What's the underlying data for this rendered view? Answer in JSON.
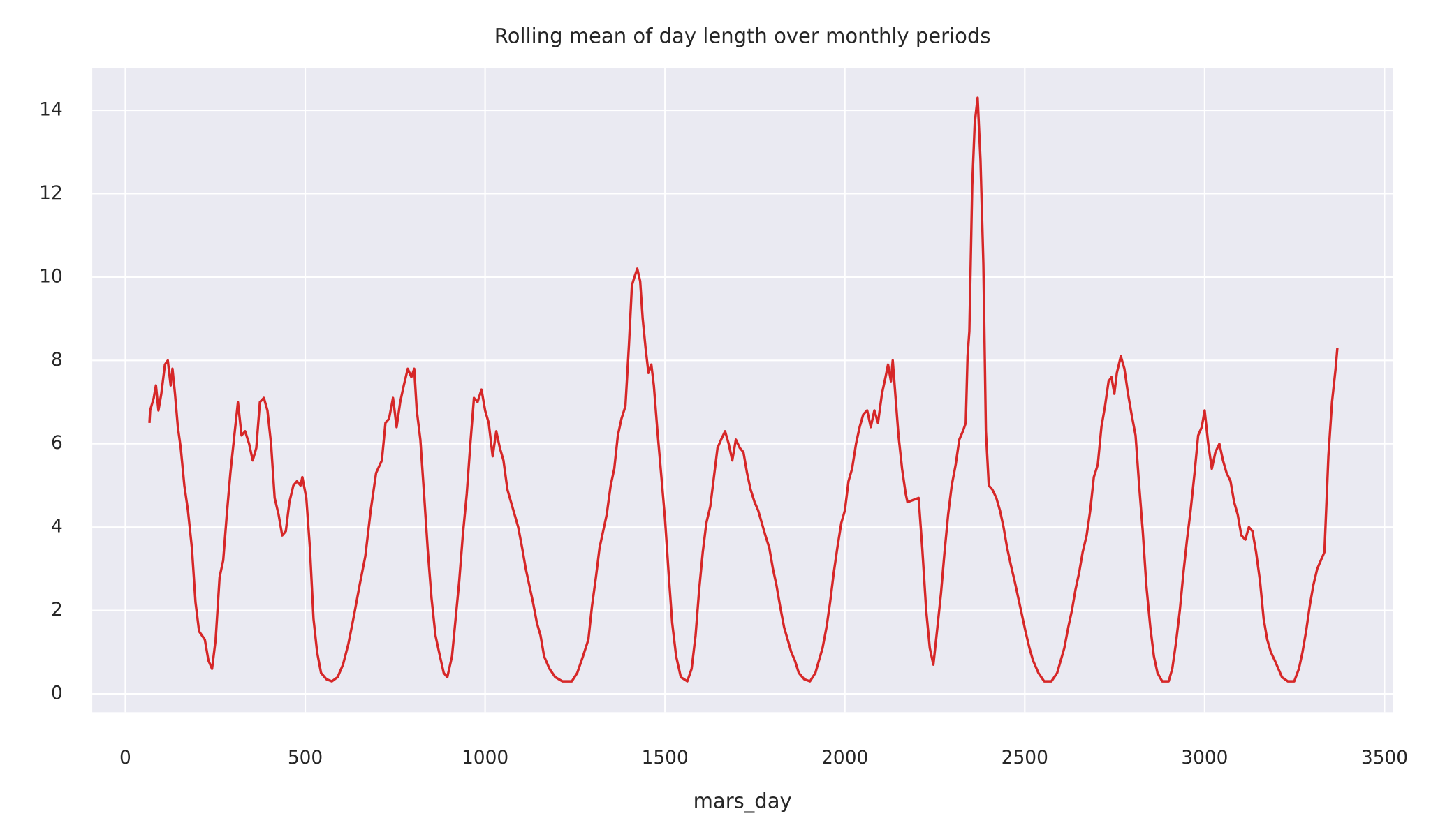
{
  "chart_data": {
    "type": "line",
    "title": "Rolling mean of day length over monthly periods",
    "x_label": "mars_day",
    "color": "#d62728",
    "grid": true,
    "xlim": [
      -92,
      3523
    ],
    "ylim": [
      -0.44,
      15.02
    ],
    "xticks": [
      0,
      500,
      1000,
      1500,
      2000,
      2500,
      3000,
      3500
    ],
    "yticks": [
      0,
      2,
      4,
      6,
      8,
      10,
      12,
      14
    ],
    "x": [
      67,
      69,
      79,
      85,
      92,
      100,
      110,
      118,
      126,
      131,
      138,
      146,
      154,
      164,
      174,
      185,
      195,
      205,
      221,
      231,
      241,
      251,
      262,
      272,
      282,
      292,
      303,
      313,
      323,
      333,
      344,
      354,
      364,
      374,
      385,
      395,
      405,
      415,
      426,
      436,
      446,
      456,
      467,
      477,
      487,
      492,
      503,
      513,
      523,
      533,
      544,
      559,
      574,
      590,
      605,
      620,
      636,
      651,
      667,
      682,
      697,
      713,
      723,
      733,
      744,
      754,
      764,
      774,
      785,
      795,
      803,
      810,
      820,
      831,
      841,
      851,
      862,
      872,
      885,
      895,
      908,
      918,
      928,
      938,
      949,
      959,
      969,
      979,
      990,
      1000,
      1010,
      1021,
      1031,
      1041,
      1051,
      1062,
      1072,
      1082,
      1092,
      1103,
      1113,
      1123,
      1133,
      1144,
      1154,
      1164,
      1179,
      1195,
      1215,
      1241,
      1256,
      1272,
      1287,
      1297,
      1308,
      1318,
      1328,
      1338,
      1349,
      1359,
      1369,
      1379,
      1390,
      1400,
      1408,
      1415,
      1423,
      1431,
      1438,
      1446,
      1454,
      1462,
      1469,
      1479,
      1490,
      1500,
      1510,
      1520,
      1531,
      1544,
      1562,
      1574,
      1585,
      1595,
      1605,
      1615,
      1626,
      1636,
      1646,
      1656,
      1667,
      1677,
      1687,
      1697,
      1708,
      1718,
      1728,
      1738,
      1749,
      1759,
      1769,
      1779,
      1790,
      1800,
      1810,
      1820,
      1831,
      1841,
      1851,
      1861,
      1872,
      1887,
      1903,
      1918,
      1928,
      1938,
      1949,
      1959,
      1969,
      1979,
      1990,
      2000,
      2010,
      2020,
      2031,
      2041,
      2051,
      2062,
      2072,
      2082,
      2092,
      2103,
      2113,
      2120,
      2128,
      2133,
      2141,
      2149,
      2159,
      2169,
      2174,
      2205,
      2215,
      2226,
      2236,
      2246,
      2256,
      2267,
      2277,
      2287,
      2297,
      2308,
      2318,
      2328,
      2336,
      2341,
      2346,
      2354,
      2361,
      2369,
      2377,
      2385,
      2392,
      2400,
      2410,
      2421,
      2431,
      2441,
      2451,
      2461,
      2472,
      2482,
      2492,
      2502,
      2513,
      2523,
      2538,
      2554,
      2574,
      2590,
      2600,
      2610,
      2621,
      2631,
      2641,
      2651,
      2661,
      2672,
      2682,
      2692,
      2703,
      2713,
      2723,
      2733,
      2741,
      2749,
      2756,
      2767,
      2777,
      2787,
      2797,
      2808,
      2818,
      2828,
      2838,
      2849,
      2859,
      2869,
      2882,
      2900,
      2910,
      2920,
      2931,
      2941,
      2951,
      2961,
      2972,
      2982,
      2992,
      3000,
      3010,
      3020,
      3030,
      3041,
      3051,
      3061,
      3072,
      3082,
      3092,
      3102,
      3113,
      3123,
      3133,
      3143,
      3154,
      3164,
      3174,
      3184,
      3195,
      3205,
      3215,
      3231,
      3249,
      3262,
      3272,
      3282,
      3292,
      3302,
      3313,
      3323,
      3333,
      3344,
      3354,
      3364,
      3369
    ],
    "values": [
      6.5,
      6.8,
      7.1,
      7.4,
      6.8,
      7.2,
      7.9,
      8.0,
      7.4,
      7.8,
      7.2,
      6.4,
      5.9,
      5.0,
      4.4,
      3.5,
      2.2,
      1.5,
      1.3,
      0.8,
      0.6,
      1.3,
      2.8,
      3.2,
      4.3,
      5.3,
      6.2,
      7.0,
      6.2,
      6.3,
      6.0,
      5.6,
      5.9,
      7.0,
      7.1,
      6.8,
      6.0,
      4.7,
      4.3,
      3.8,
      3.9,
      4.6,
      5.0,
      5.1,
      5.0,
      5.2,
      4.7,
      3.5,
      1.8,
      1.0,
      0.5,
      0.35,
      0.3,
      0.4,
      0.7,
      1.2,
      1.9,
      2.6,
      3.3,
      4.4,
      5.3,
      5.6,
      6.5,
      6.6,
      7.1,
      6.4,
      7.0,
      7.4,
      7.8,
      7.6,
      7.8,
      6.8,
      6.1,
      4.7,
      3.4,
      2.3,
      1.4,
      1.0,
      0.5,
      0.4,
      0.9,
      1.8,
      2.7,
      3.8,
      4.8,
      6.0,
      7.1,
      7.0,
      7.3,
      6.8,
      6.5,
      5.7,
      6.3,
      5.9,
      5.6,
      4.9,
      4.6,
      4.3,
      4.0,
      3.5,
      3.0,
      2.6,
      2.2,
      1.7,
      1.4,
      0.9,
      0.6,
      0.4,
      0.3,
      0.3,
      0.5,
      0.9,
      1.3,
      2.1,
      2.8,
      3.5,
      3.9,
      4.3,
      5.0,
      5.4,
      6.2,
      6.6,
      6.9,
      8.4,
      9.8,
      10.0,
      10.2,
      9.9,
      9.0,
      8.3,
      7.7,
      7.9,
      7.4,
      6.3,
      5.2,
      4.2,
      2.9,
      1.7,
      0.9,
      0.4,
      0.3,
      0.6,
      1.4,
      2.5,
      3.4,
      4.1,
      4.5,
      5.2,
      5.9,
      6.1,
      6.3,
      6.0,
      5.6,
      6.1,
      5.9,
      5.8,
      5.3,
      4.9,
      4.6,
      4.4,
      4.1,
      3.8,
      3.5,
      3.0,
      2.6,
      2.1,
      1.6,
      1.3,
      1.0,
      0.8,
      0.5,
      0.35,
      0.3,
      0.5,
      0.8,
      1.1,
      1.6,
      2.2,
      2.9,
      3.5,
      4.1,
      4.4,
      5.1,
      5.4,
      6.0,
      6.4,
      6.7,
      6.8,
      6.4,
      6.8,
      6.5,
      7.2,
      7.6,
      7.9,
      7.5,
      8.0,
      7.1,
      6.2,
      5.4,
      4.8,
      4.6,
      4.7,
      3.5,
      2.0,
      1.1,
      0.7,
      1.5,
      2.4,
      3.4,
      4.3,
      5.0,
      5.5,
      6.1,
      6.3,
      6.5,
      8.1,
      8.7,
      12.2,
      13.7,
      14.3,
      12.8,
      10.3,
      6.3,
      5.0,
      4.9,
      4.7,
      4.4,
      4.0,
      3.5,
      3.1,
      2.7,
      2.3,
      1.9,
      1.5,
      1.1,
      0.8,
      0.5,
      0.3,
      0.3,
      0.5,
      0.8,
      1.1,
      1.6,
      2.0,
      2.5,
      2.9,
      3.4,
      3.8,
      4.4,
      5.2,
      5.5,
      6.4,
      6.9,
      7.5,
      7.6,
      7.2,
      7.7,
      8.1,
      7.8,
      7.2,
      6.7,
      6.2,
      5.0,
      3.9,
      2.6,
      1.6,
      0.9,
      0.5,
      0.3,
      0.3,
      0.6,
      1.2,
      2.0,
      2.9,
      3.7,
      4.4,
      5.3,
      6.2,
      6.4,
      6.8,
      6.0,
      5.4,
      5.8,
      6.0,
      5.6,
      5.3,
      5.1,
      4.6,
      4.3,
      3.8,
      3.7,
      4.0,
      3.9,
      3.4,
      2.7,
      1.8,
      1.3,
      1.0,
      0.8,
      0.6,
      0.4,
      0.3,
      0.3,
      0.6,
      1.0,
      1.5,
      2.1,
      2.6,
      3.0,
      3.2,
      3.4,
      5.7,
      7.0,
      7.8,
      8.3
    ]
  }
}
